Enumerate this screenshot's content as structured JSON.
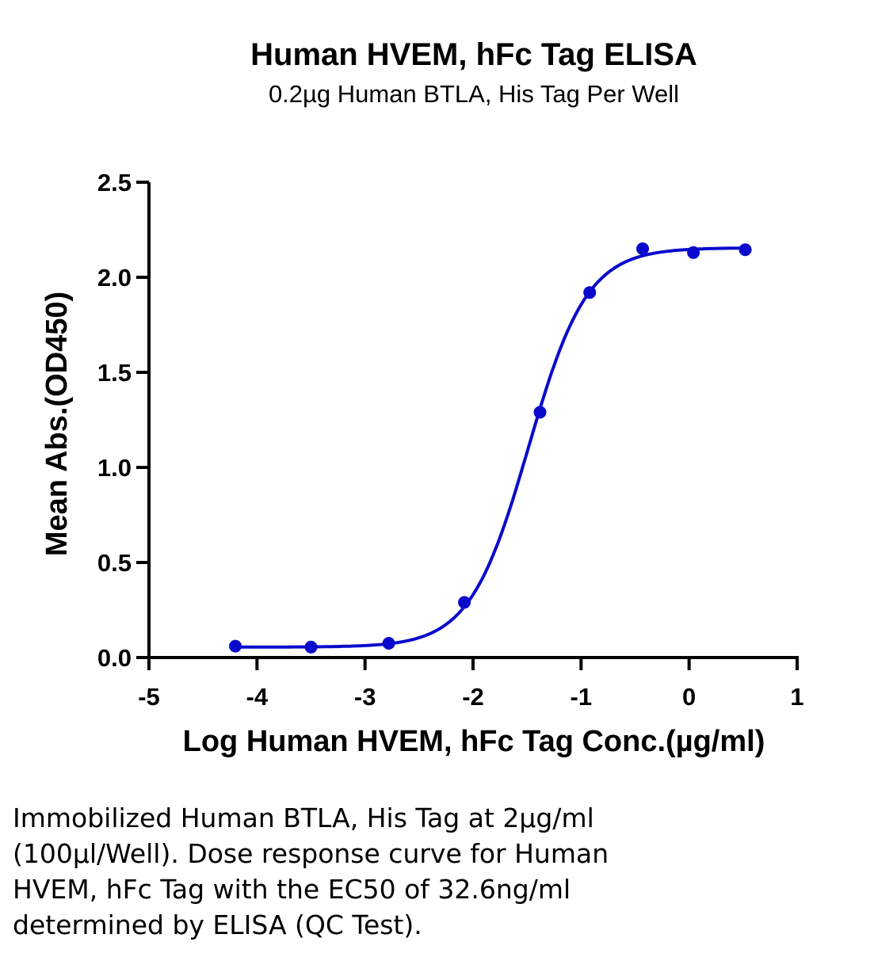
{
  "chart_data": {
    "type": "scatter",
    "title": "Human HVEM, hFc Tag ELISA",
    "subtitle": "0.2µg Human BTLA, His Tag Per Well",
    "xlabel": "Log Human HVEM, hFc Tag Conc.(µg/ml)",
    "ylabel": "Mean Abs.(OD450)",
    "xlim": [
      -5,
      1
    ],
    "ylim": [
      0,
      2.5
    ],
    "xticks": [
      "-5",
      "-4",
      "-3",
      "-2",
      "-1",
      "0",
      "1"
    ],
    "yticks": [
      "0.0",
      "0.5",
      "1.0",
      "1.5",
      "2.0",
      "2.5"
    ],
    "grid": false,
    "series": [
      {
        "x": [
          -4.2,
          -3.5,
          -2.78,
          -2.08,
          -1.38,
          -0.92,
          -0.43,
          0.04,
          0.52
        ],
        "y": [
          0.06,
          0.055,
          0.075,
          0.29,
          1.29,
          1.92,
          2.15,
          2.13,
          2.145
        ],
        "color": "#0a0acc",
        "fit": "four-parameter logistic",
        "fit_params": {
          "bottom": 0.055,
          "top": 2.155,
          "logEC50": -1.487,
          "hill": 1.6
        }
      }
    ]
  },
  "caption_lines": [
    "Immobilized Human BTLA, His Tag at 2µg/ml",
    "(100µl/Well). Dose response curve for Human",
    "HVEM, hFc Tag with the EC50 of 32.6ng/ml",
    "determined by ELISA (QC Test)."
  ]
}
